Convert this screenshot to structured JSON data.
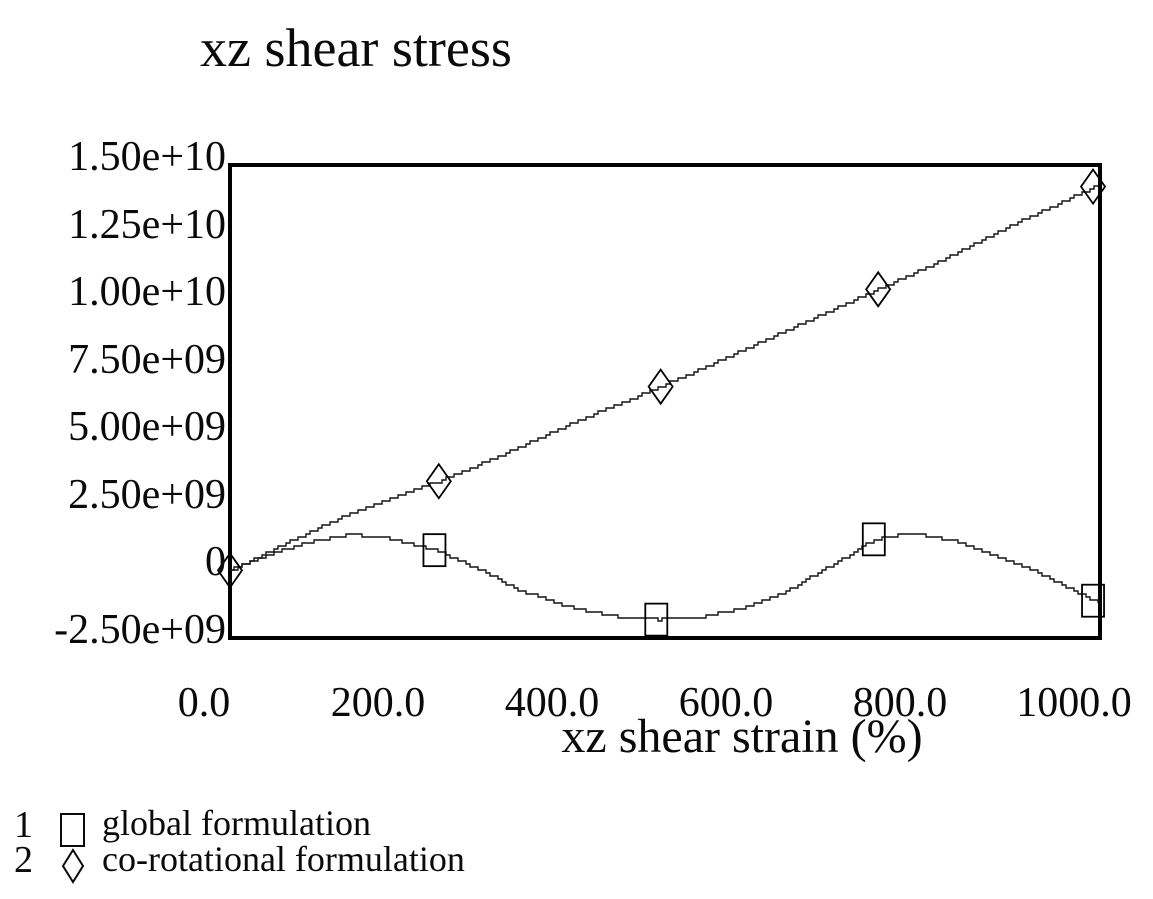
{
  "title": "xz shear stress",
  "x_axis_label": "xz shear strain (%)",
  "colors": {
    "line": "#000000",
    "frame": "#000000",
    "text": "#0a0a0a",
    "background": "#ffffff"
  },
  "legend": {
    "items": [
      {
        "index": "1",
        "marker": "square",
        "label": "global formulation"
      },
      {
        "index": "2",
        "marker": "diamond",
        "label": "co-rotational formulation"
      }
    ]
  },
  "chart_data": {
    "type": "line",
    "title": "xz shear stress",
    "xlabel": "xz shear strain (%)",
    "ylabel": "",
    "xlim": [
      0,
      1000
    ],
    "ylim": [
      -2500000000.0,
      15000000000.0
    ],
    "grid": false,
    "legend_position": "bottom-left",
    "x_ticks": [
      {
        "value": 0,
        "label": "0.0"
      },
      {
        "value": 200,
        "label": "200.0"
      },
      {
        "value": 400,
        "label": "400.0"
      },
      {
        "value": 600,
        "label": "600.0"
      },
      {
        "value": 800,
        "label": "800.0"
      },
      {
        "value": 1000,
        "label": "1000.0"
      }
    ],
    "y_ticks": [
      {
        "value": 15000000000.0,
        "label": "1.50e+10"
      },
      {
        "value": 12500000000.0,
        "label": "1.25e+10"
      },
      {
        "value": 10000000000.0,
        "label": "1.00e+10"
      },
      {
        "value": 7500000000.0,
        "label": "7.50e+09"
      },
      {
        "value": 5000000000.0,
        "label": "5.00e+09"
      },
      {
        "value": 2500000000.0,
        "label": "2.50e+09"
      },
      {
        "value": 0,
        "label": "0"
      },
      {
        "value": -2500000000.0,
        "label": "-2.50e+09"
      }
    ],
    "series": [
      {
        "number": "1",
        "name": "global formulation",
        "marker": "square",
        "curve": [
          [
            0,
            0
          ],
          [
            45,
            600000000.0
          ],
          [
            95,
            1100000000.0
          ],
          [
            140,
            1330000000.0
          ],
          [
            185,
            1170000000.0
          ],
          [
            235,
            750000000.0
          ],
          [
            285,
            50000000.0
          ],
          [
            330,
            -700000000.0
          ],
          [
            385,
            -1330000000.0
          ],
          [
            440,
            -1700000000.0
          ],
          [
            490,
            -1820000000.0
          ],
          [
            545,
            -1710000000.0
          ],
          [
            595,
            -1330000000.0
          ],
          [
            640,
            -750000000.0
          ],
          [
            678,
            -50000000.0
          ],
          [
            705,
            450000000.0
          ],
          [
            740,
            1150000000.0
          ],
          [
            782,
            1370000000.0
          ],
          [
            830,
            1120000000.0
          ],
          [
            878,
            550000000.0
          ],
          [
            925,
            -50000000.0
          ],
          [
            962,
            -650000000.0
          ],
          [
            1000,
            -1240000000.0
          ]
        ],
        "markers": [
          [
            235,
            750000000.0
          ],
          [
            490,
            -1820000000.0
          ],
          [
            740,
            1150000000.0
          ],
          [
            992,
            -1120000000.0
          ]
        ]
      },
      {
        "number": "2",
        "name": "co-rotational formulation",
        "marker": "diamond",
        "curve": [
          [
            0,
            0
          ],
          [
            60,
            950000000.0
          ],
          [
            140,
            2150000000.0
          ],
          [
            240,
            3300000000.0
          ],
          [
            300,
            4100000000.0
          ],
          [
            400,
            5550000000.0
          ],
          [
            495,
            6800000000.0
          ],
          [
            600,
            8300000000.0
          ],
          [
            700,
            9750000000.0
          ],
          [
            745,
            10400000000.0
          ],
          [
            800,
            11200000000.0
          ],
          [
            900,
            12800000000.0
          ],
          [
            1000,
            14280000000.0
          ]
        ],
        "markers": [
          [
            0,
            0
          ],
          [
            240,
            3300000000.0
          ],
          [
            495,
            6800000000.0
          ],
          [
            745,
            10400000000.0
          ],
          [
            992,
            14200000000.0
          ]
        ]
      }
    ]
  }
}
